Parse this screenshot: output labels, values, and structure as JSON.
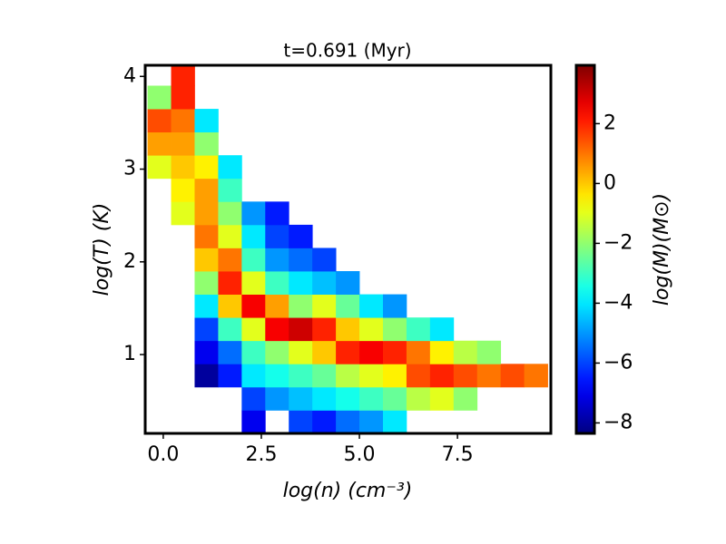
{
  "chart_data": {
    "type": "heatmap",
    "title": "t=0.691 (Myr)",
    "xlabel": "log(n) (cm⁻³)",
    "ylabel": "log(T) (K)",
    "colorbar_label": "log(M)(M⊙)",
    "colormap": "jet",
    "xlim": [
      -0.46,
      9.88
    ],
    "ylim": [
      0.15,
      4.12
    ],
    "clim": [
      -8.35,
      3.95
    ],
    "xticks": [
      {
        "value": 0,
        "label": "0.0"
      },
      2.5,
      {
        "value": 5,
        "label": "5.0"
      },
      7.5
    ],
    "yticks": [
      1,
      2,
      3,
      4
    ],
    "cticks": [
      2,
      0,
      {
        "value": -2,
        "label": "−2"
      },
      {
        "value": -4,
        "label": "−4"
      },
      {
        "value": -6,
        "label": "−6"
      },
      {
        "value": -8,
        "label": "−8"
      }
    ],
    "xbins": [
      -0.4,
      0.2,
      0.8,
      1.4,
      2.0,
      2.6,
      3.2,
      3.8,
      4.4,
      5.0,
      5.6,
      6.2,
      6.8,
      7.4,
      8.0,
      8.6,
      9.2,
      9.8
    ],
    "ybins": [
      0.15,
      0.4,
      0.65,
      0.9,
      1.15,
      1.4,
      1.65,
      1.9,
      2.15,
      2.4,
      2.65,
      2.9,
      3.15,
      3.4,
      3.65,
      3.9,
      4.15
    ],
    "z": [
      [
        null,
        null,
        null,
        null,
        -7,
        null,
        -6,
        -6.5,
        -5.5,
        -5,
        -4,
        null,
        null,
        null,
        null,
        null,
        null
      ],
      [
        null,
        null,
        null,
        null,
        -6,
        -5,
        -4.5,
        -4,
        -3.5,
        -3,
        -2.5,
        -1.5,
        -1,
        -2,
        null,
        null,
        null
      ],
      [
        null,
        null,
        -8,
        -6.5,
        -4,
        -3.5,
        -3,
        -2.5,
        -1.5,
        -1,
        -0.5,
        1.5,
        2,
        1.5,
        1,
        1.5,
        1
      ],
      [
        null,
        null,
        -7,
        -5.5,
        -3,
        -2,
        -1,
        0,
        2,
        2.5,
        2,
        1,
        -0.5,
        -1.5,
        -2,
        null,
        null
      ],
      [
        null,
        null,
        -6,
        -3,
        -1,
        2.5,
        3,
        2,
        0,
        -1,
        -2,
        -3,
        -4,
        null,
        null,
        null,
        null
      ],
      [
        null,
        null,
        -4,
        0,
        2.5,
        0.5,
        -2,
        -1,
        -2.5,
        -4,
        -5,
        null,
        null,
        null,
        null,
        null,
        null
      ],
      [
        null,
        null,
        -2,
        2,
        -1,
        -3,
        -4,
        -4.5,
        -5,
        null,
        null,
        null,
        null,
        null,
        null,
        null,
        null
      ],
      [
        null,
        null,
        0,
        1,
        -3,
        -5,
        -5.5,
        -6,
        null,
        null,
        null,
        null,
        null,
        null,
        null,
        null,
        null
      ],
      [
        null,
        null,
        1,
        -1,
        -4,
        -6,
        -6.5,
        null,
        null,
        null,
        null,
        null,
        null,
        null,
        null,
        null,
        null
      ],
      [
        null,
        -1,
        0.5,
        -2,
        -5,
        -6.5,
        null,
        null,
        null,
        null,
        null,
        null,
        null,
        null,
        null,
        null,
        null
      ],
      [
        null,
        -0.5,
        0.5,
        -3,
        null,
        null,
        null,
        null,
        null,
        null,
        null,
        null,
        null,
        null,
        null,
        null,
        null
      ],
      [
        -1,
        0,
        -0.5,
        -4,
        null,
        null,
        null,
        null,
        null,
        null,
        null,
        null,
        null,
        null,
        null,
        null,
        null
      ],
      [
        0.5,
        0.5,
        -2,
        null,
        null,
        null,
        null,
        null,
        null,
        null,
        null,
        null,
        null,
        null,
        null,
        null,
        null
      ],
      [
        1.5,
        1,
        -4,
        null,
        null,
        null,
        null,
        null,
        null,
        null,
        null,
        null,
        null,
        null,
        null,
        null,
        null
      ],
      [
        -2,
        2,
        null,
        null,
        null,
        null,
        null,
        null,
        null,
        null,
        null,
        null,
        null,
        null,
        null,
        null,
        null
      ],
      [
        null,
        2,
        null,
        null,
        null,
        null,
        null,
        null,
        null,
        null,
        null,
        null,
        null,
        null,
        null,
        null,
        null
      ]
    ]
  }
}
